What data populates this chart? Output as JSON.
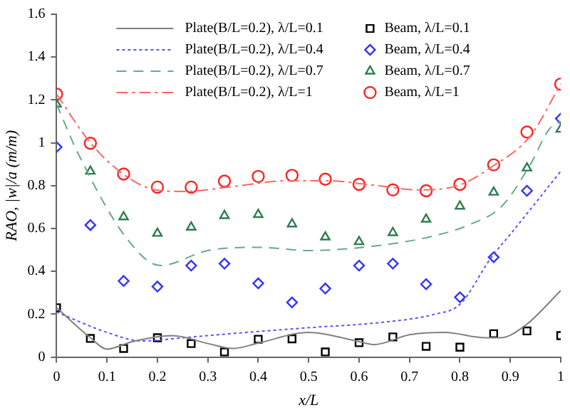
{
  "chart_data": {
    "type": "line",
    "xlabel": "x/L",
    "ylabel": "RAO, |w|/a (m/m)",
    "xlim": [
      0,
      1
    ],
    "ylim": [
      0,
      1.6
    ],
    "xticks": [
      0,
      0.1,
      0.2,
      0.3,
      0.4,
      0.5,
      0.6,
      0.7,
      0.8,
      0.9,
      1
    ],
    "yticks": [
      0,
      0.2,
      0.4,
      0.6,
      0.8,
      1,
      1.2,
      1.4,
      1.6
    ],
    "grid": false,
    "legend": "top",
    "series": [
      {
        "name": "Plate(B/L=0.2), λ/L=0.1",
        "type": "line",
        "color": "#808080",
        "line_style": "solid",
        "marker": "none",
        "x": [
          0,
          0.067,
          0.1,
          0.15,
          0.23,
          0.3,
          0.35,
          0.4,
          0.5,
          0.6,
          0.63,
          0.7,
          0.77,
          0.85,
          0.88,
          0.93,
          1
        ],
        "values": [
          0.23,
          0.09,
          0.037,
          0.072,
          0.1,
          0.063,
          0.04,
          0.065,
          0.115,
          0.072,
          0.058,
          0.104,
          0.115,
          0.09,
          0.09,
          0.148,
          0.31
        ]
      },
      {
        "name": "Plate(B/L=0.2), λ/L=0.4",
        "type": "line",
        "color": "#5555ff",
        "line_style": "dotted",
        "marker": "none",
        "x": [
          0,
          0.1,
          0.17,
          0.25,
          0.35,
          0.5,
          0.65,
          0.75,
          0.8,
          0.862,
          0.9,
          1
        ],
        "values": [
          0.21,
          0.115,
          0.075,
          0.09,
          0.11,
          0.137,
          0.163,
          0.2,
          0.246,
          0.464,
          0.573,
          0.867
        ]
      },
      {
        "name": "Plate(B/L=0.2), λ/L=0.7",
        "type": "line",
        "color": "#66aa88",
        "line_style": "dashed",
        "marker": "none",
        "x": [
          0,
          0.042,
          0.14,
          0.206,
          0.3,
          0.404,
          0.498,
          0.63,
          0.742,
          0.817,
          0.883,
          0.94,
          0.977,
          1
        ],
        "values": [
          1.18,
          0.954,
          0.551,
          0.427,
          0.497,
          0.512,
          0.497,
          0.518,
          0.562,
          0.616,
          0.704,
          0.9,
          1.063,
          1.1
        ]
      },
      {
        "name": "Plate(B/L=0.2), λ/L=1",
        "type": "line",
        "color": "#ff6666",
        "line_style": "dashdot",
        "marker": "none",
        "x": [
          0,
          0.067,
          0.131,
          0.197,
          0.254,
          0.347,
          0.46,
          0.535,
          0.629,
          0.723,
          0.798,
          0.864,
          0.939,
          1
        ],
        "values": [
          1.227,
          1.0,
          0.856,
          0.78,
          0.773,
          0.795,
          0.823,
          0.823,
          0.802,
          0.78,
          0.802,
          0.889,
          1.03,
          1.274
        ]
      },
      {
        "name": "Beam, λ/L=0.1",
        "type": "scatter",
        "color": "#000000",
        "marker": "square",
        "x": [
          0,
          0.067,
          0.133,
          0.2,
          0.267,
          0.333,
          0.4,
          0.467,
          0.533,
          0.6,
          0.667,
          0.733,
          0.8,
          0.867,
          0.933,
          1
        ],
        "values": [
          0.23,
          0.087,
          0.04,
          0.09,
          0.063,
          0.024,
          0.083,
          0.085,
          0.024,
          0.067,
          0.094,
          0.05,
          0.046,
          0.109,
          0.122,
          0.1
        ]
      },
      {
        "name": "Beam, λ/L=0.4",
        "type": "scatter",
        "color": "#3333ff",
        "marker": "diamond",
        "x": [
          0,
          0.067,
          0.133,
          0.2,
          0.267,
          0.333,
          0.4,
          0.467,
          0.533,
          0.6,
          0.667,
          0.733,
          0.8,
          0.867,
          0.933,
          1
        ],
        "values": [
          0.98,
          0.616,
          0.355,
          0.329,
          0.427,
          0.436,
          0.344,
          0.255,
          0.32,
          0.427,
          0.436,
          0.34,
          0.279,
          0.466,
          0.776,
          1.113
        ]
      },
      {
        "name": "Beam, λ/L=0.7",
        "type": "scatter",
        "color": "#2e7d4f",
        "marker": "triangle",
        "x": [
          0,
          0.067,
          0.133,
          0.2,
          0.267,
          0.333,
          0.4,
          0.467,
          0.533,
          0.6,
          0.667,
          0.733,
          0.8,
          0.867,
          0.933,
          1
        ],
        "values": [
          1.18,
          0.867,
          0.654,
          0.577,
          0.606,
          0.66,
          0.665,
          0.621,
          0.56,
          0.538,
          0.58,
          0.643,
          0.704,
          0.769,
          0.882,
          1.063
        ]
      },
      {
        "name": "Beam, λ/L=1",
        "type": "scatter",
        "color": "#ff2222",
        "marker": "circle",
        "x": [
          0,
          0.067,
          0.133,
          0.2,
          0.267,
          0.333,
          0.4,
          0.467,
          0.533,
          0.6,
          0.667,
          0.733,
          0.8,
          0.867,
          0.933,
          1
        ],
        "values": [
          1.227,
          0.998,
          0.854,
          0.793,
          0.793,
          0.821,
          0.843,
          0.848,
          0.83,
          0.806,
          0.78,
          0.776,
          0.806,
          0.897,
          1.05,
          1.274
        ]
      }
    ]
  }
}
